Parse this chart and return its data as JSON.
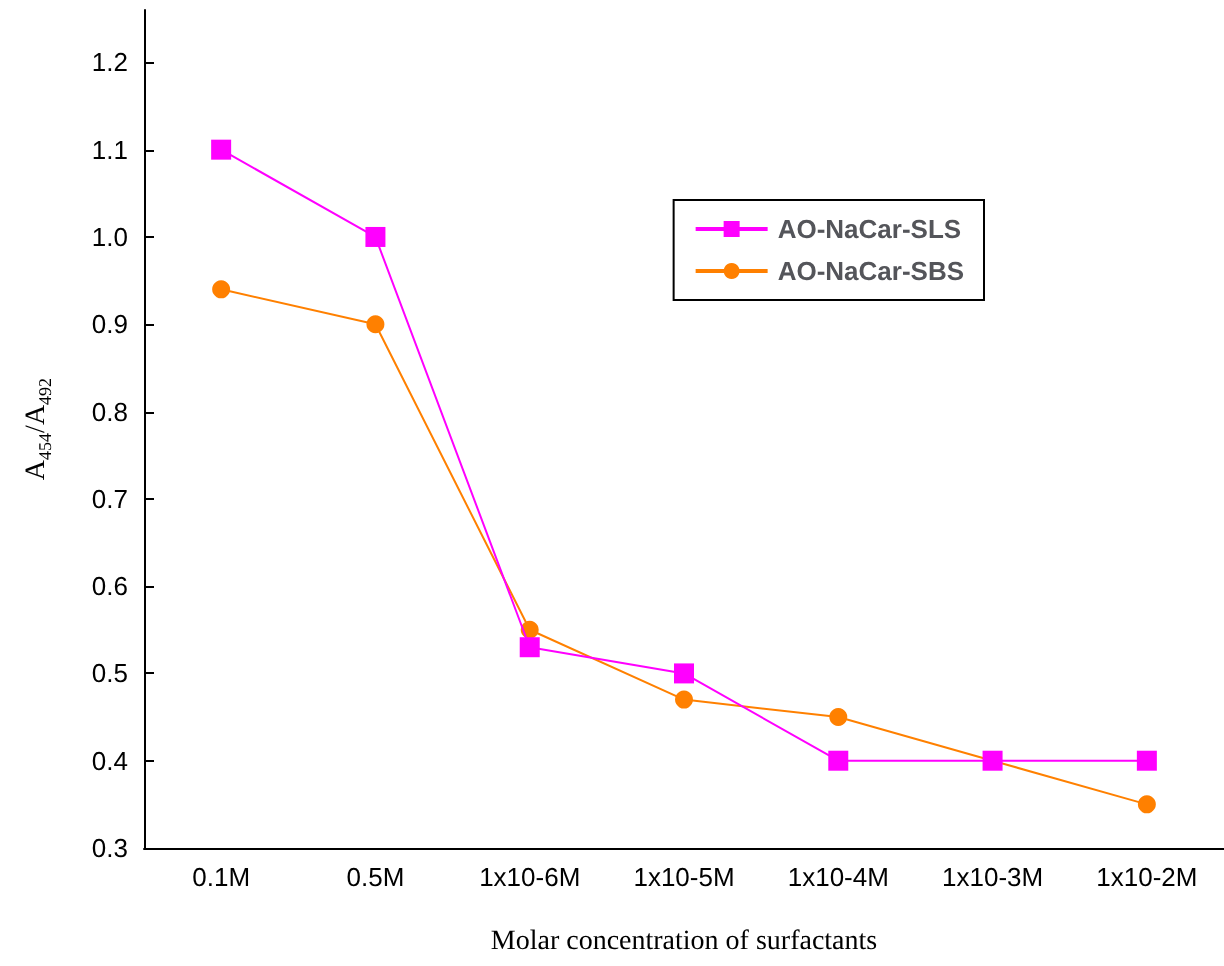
{
  "chart_data": {
    "type": "line",
    "xlabel": "Molar concentration of surfactants",
    "ylabel": "A$_{454}$/A$_{492}$",
    "categories": [
      "0.1M",
      "0.5M",
      "1x10-6M",
      "1x10-5M",
      "1x10-4M",
      "1x10-3M",
      "1x10-2M"
    ],
    "series": [
      {
        "name": "AO-NaCar-SLS",
        "color": "#ff00ff",
        "marker": "square",
        "values": [
          1.1,
          1.0,
          0.53,
          0.5,
          0.4,
          0.4,
          0.4
        ]
      },
      {
        "name": "AO-NaCar-SBS",
        "color": "#ff8000",
        "marker": "circle",
        "values": [
          0.94,
          0.9,
          0.55,
          0.47,
          0.45,
          0.4,
          0.35
        ]
      }
    ],
    "ylim": [
      0.3,
      1.26
    ],
    "yticks": [
      {
        "value": 0.3,
        "label": "0.3"
      },
      {
        "value": 0.4,
        "label": "0.4"
      },
      {
        "value": 0.5,
        "label": "0.5"
      },
      {
        "value": 0.6,
        "label": "0.6"
      },
      {
        "value": 0.7,
        "label": "0.7"
      },
      {
        "value": 0.8,
        "label": "0.8"
      },
      {
        "value": 0.9,
        "label": "0.9"
      },
      {
        "value": 1.0,
        "label": "1.0"
      },
      {
        "value": 1.1,
        "label": "1.1"
      },
      {
        "value": 1.2,
        "label": "1.2"
      }
    ],
    "grid": false,
    "legend": "top right",
    "line_style": "solid"
  }
}
